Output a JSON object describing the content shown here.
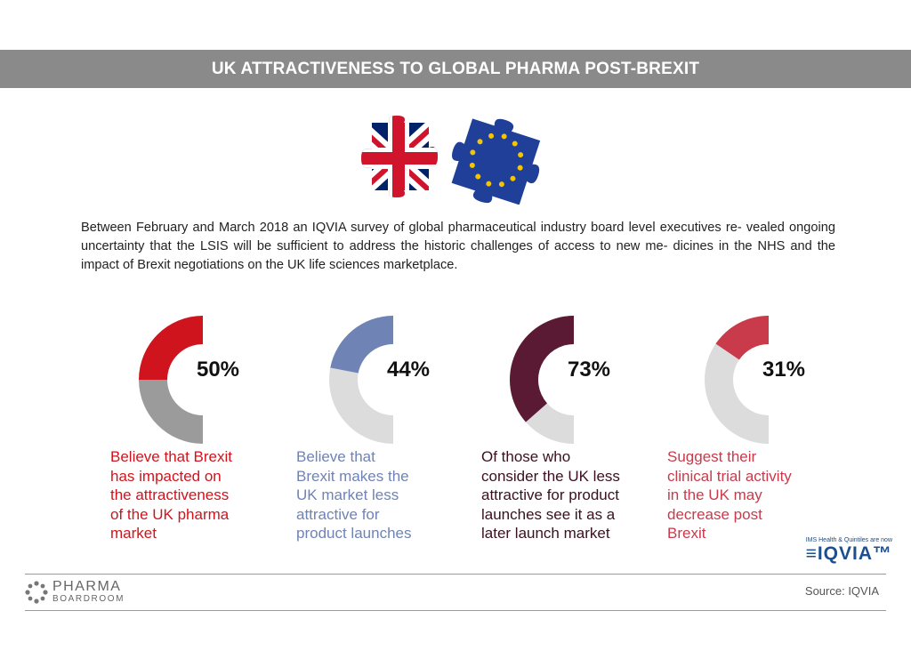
{
  "header": {
    "title": "UK ATTRACTIVENESS TO GLOBAL PHARMA POST-BREXIT"
  },
  "intro": {
    "lines": [
      "Between February and March 2018 an IQVIA survey of global pharmaceutical industry board level executives re-",
      "vealed ongoing uncertainty that the LSIS will be sufficient to address the historic challenges of access to new me-",
      "dicines in the NHS and the impact of Brexit negotiations on the UK life sciences marketplace."
    ]
  },
  "chart_data": [
    {
      "type": "pie",
      "values": [
        50
      ],
      "label": "50%",
      "color": "#d0141d",
      "track": "#9b9b9b",
      "caption": [
        "Believe that Brexit",
        "has impacted on",
        "the attractiveness",
        "of the UK pharma",
        "market"
      ]
    },
    {
      "type": "pie",
      "values": [
        44
      ],
      "label": "44%",
      "color": "#6f83b4",
      "track": "#dcdcdc",
      "caption": [
        "Believe that",
        "Brexit makes the",
        "UK market less",
        "attractive for",
        "product launches"
      ]
    },
    {
      "type": "pie",
      "values": [
        73
      ],
      "label": "73%",
      "color": "#5a1a33",
      "track": "#dcdcdc",
      "caption": [
        "Of those who",
        "consider the UK less",
        "attractive for product",
        "launches see it as a",
        "later launch market"
      ]
    },
    {
      "type": "pie",
      "values": [
        31
      ],
      "label": "31%",
      "color": "#c93a4b",
      "track": "#dcdcdc",
      "caption": [
        "Suggest their",
        "clinical trial activity",
        "in the UK may",
        "decrease post",
        "Brexit"
      ]
    }
  ],
  "iqvia": {
    "tagline": "IMS Health & Quintiles are now",
    "wordmark": "≡IQVIA™"
  },
  "footer": {
    "brand_name": "PHARMA",
    "brand_sub": "BOARDROOM",
    "source": "Source: IQVIA"
  },
  "colors": {
    "banner": "#8a8a8a",
    "uk_red": "#cf142b",
    "uk_blue": "#012169",
    "eu_blue": "#1f3f99",
    "eu_star": "#f5c400"
  }
}
